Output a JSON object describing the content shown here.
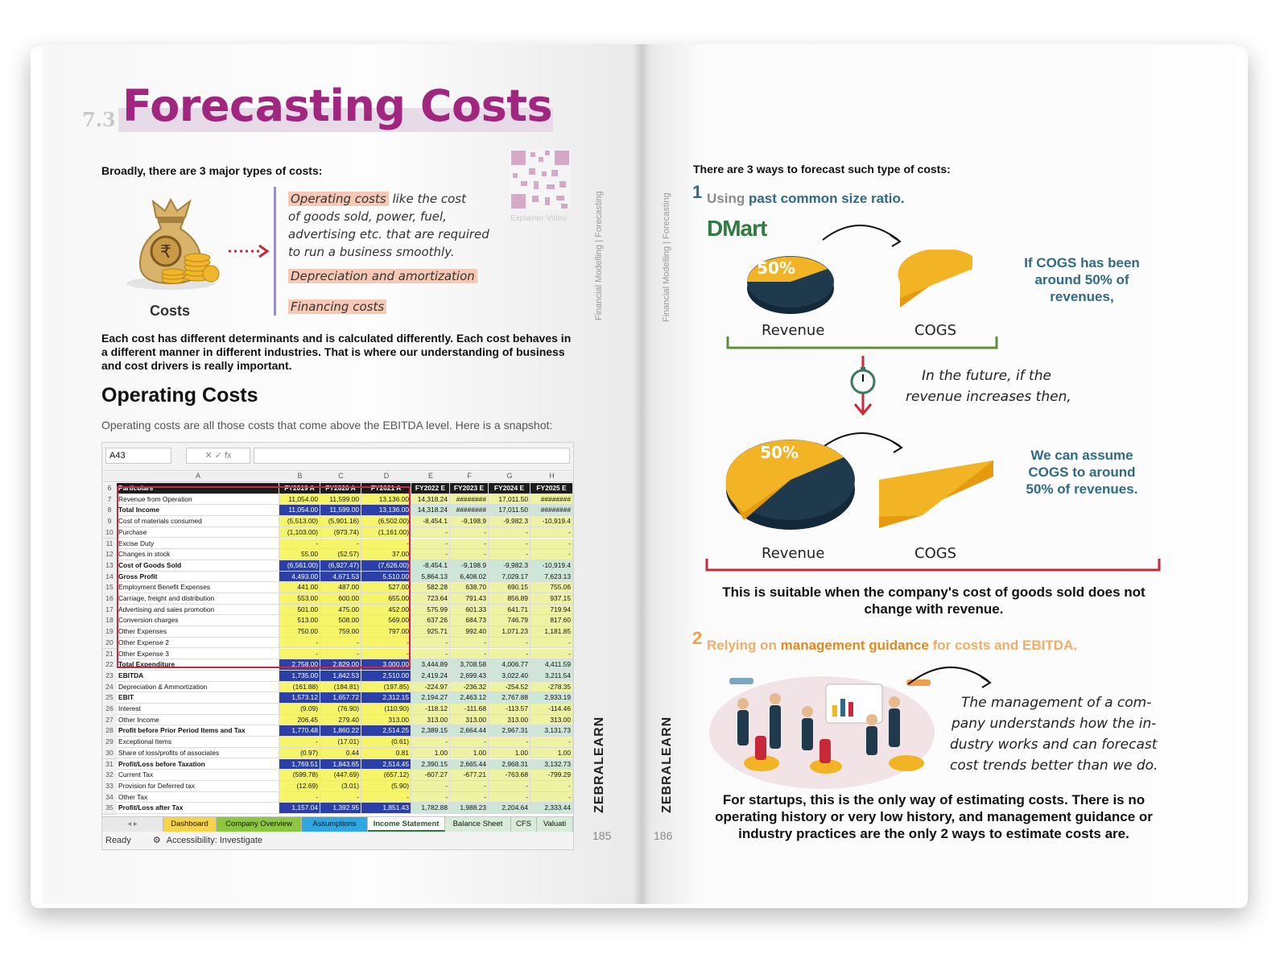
{
  "left_page": {
    "section_number": "7.3",
    "title": "Forecasting Costs",
    "intro": "Broadly, there are 3 major types of costs:",
    "costs_label": "Costs",
    "cost_types": [
      {
        "highlight": "Operating costs",
        "text": " like the cost"
      },
      {
        "highlight": "",
        "text": "of goods sold, power, fuel,"
      },
      {
        "highlight": "",
        "text": "advertising etc. that are required"
      },
      {
        "highlight": "",
        "text": "to run a business smoothly."
      },
      {
        "highlight": "Depreciation and amortization",
        "text": ""
      },
      {
        "highlight": "Financing costs",
        "text": ""
      }
    ],
    "qr_caption": "Explainer Video",
    "vertical_label": "Financial Modelling  |  Forecasting",
    "paragraph": "Each cost has different determinants and is calculated differently. Each cost behaves in a different manner in different industries. That is where our understanding of business and cost drivers is really important.",
    "operating_heading": "Operating Costs",
    "operating_text": "Operating costs are all those costs that come above the EBITDA level. Here is a snapshot:",
    "brand": "ZEBRALEARN",
    "page_number": "185"
  },
  "spreadsheet": {
    "name_box": "A43",
    "formula_buttons": "✕  ✓  fx",
    "col_letters": [
      "A",
      "B",
      "C",
      "D",
      "E",
      "F",
      "G",
      "H"
    ],
    "header": [
      "Particulars",
      "FY2019 A",
      "FY2020 A",
      "FY2021 A",
      "FY2022 E",
      "FY2023 E",
      "FY2024 E",
      "FY2025 E"
    ],
    "rows": [
      {
        "n": "7",
        "label": "Revenue from Operation",
        "v": [
          "11,054.00",
          "11,599.00",
          "13,136.00",
          "14,318.24",
          "########",
          "17,011.50",
          "########"
        ],
        "t": "y"
      },
      {
        "n": "8",
        "label": "Total Income",
        "v": [
          "11,054.00",
          "11,599.00",
          "13,136.00",
          "14,318.24",
          "########",
          "17,011.50",
          "########"
        ],
        "t": "b"
      },
      {
        "n": "9",
        "label": "Cost of materials consumed",
        "v": [
          "(5,513.00)",
          "(5,901.16)",
          "(6,502.00)",
          "-8,454.1",
          "-9,198.9",
          "-9,982.3",
          "-10,919.4"
        ],
        "t": "y"
      },
      {
        "n": "10",
        "label": "Purchase",
        "v": [
          "(1,103.00)",
          "(973.74)",
          "(1,161.00)",
          "-",
          "-",
          "-",
          "-"
        ],
        "t": "y"
      },
      {
        "n": "11",
        "label": "Excise Duty",
        "v": [
          "-",
          "-",
          "-",
          "-",
          "-",
          "-",
          "-"
        ],
        "t": "y"
      },
      {
        "n": "12",
        "label": "Changes in stock",
        "v": [
          "55.00",
          "(52.57)",
          "37.00",
          "-",
          "-",
          "-",
          "-"
        ],
        "t": "y"
      },
      {
        "n": "13",
        "label": "Cost of Goods Sold",
        "v": [
          "(6,561.00)",
          "(6,927.47)",
          "(7,626.00)",
          "-8,454.1",
          "-9,198.9",
          "-9,982.3",
          "-10,919.4"
        ],
        "t": "b"
      },
      {
        "n": "14",
        "label": "Gross Profit",
        "v": [
          "4,493.00",
          "4,671.53",
          "5,510.00",
          "5,864.13",
          "6,408.02",
          "7,029.17",
          "7,623.13"
        ],
        "t": "b"
      },
      {
        "n": "15",
        "label": "Employment Benefit Expenses",
        "v": [
          "441.00",
          "487.00",
          "527.00",
          "582.28",
          "638.70",
          "690.15",
          "755.06"
        ],
        "t": "y"
      },
      {
        "n": "16",
        "label": "Carriage, freight and distribution",
        "v": [
          "553.00",
          "600.00",
          "655.00",
          "723.64",
          "791.43",
          "856.89",
          "937.15"
        ],
        "t": "y"
      },
      {
        "n": "17",
        "label": "Advertising and sales promotion",
        "v": [
          "501.00",
          "475.00",
          "452.00",
          "575.99",
          "601.33",
          "641.71",
          "719.94"
        ],
        "t": "y"
      },
      {
        "n": "18",
        "label": "Conversion charges",
        "v": [
          "513.00",
          "508.00",
          "569.00",
          "637.26",
          "684.73",
          "746.79",
          "817.60"
        ],
        "t": "y"
      },
      {
        "n": "19",
        "label": "Other Expenses",
        "v": [
          "750.00",
          "759.00",
          "797.00",
          "925.71",
          "992.40",
          "1,071.23",
          "1,181.85"
        ],
        "t": "y"
      },
      {
        "n": "20",
        "label": "Other Expense 2",
        "v": [
          "-",
          "-",
          "-",
          "-",
          "-",
          "-",
          "-"
        ],
        "t": "y"
      },
      {
        "n": "21",
        "label": "Other Expense 3",
        "v": [
          "-",
          "-",
          "-",
          "-",
          "-",
          "-",
          "-"
        ],
        "t": "y"
      },
      {
        "n": "22",
        "label": "Total Expenditure",
        "v": [
          "2,758.00",
          "2,829.00",
          "3,000.00",
          "3,444.89",
          "3,708.58",
          "4,006.77",
          "4,411.59"
        ],
        "t": "b"
      },
      {
        "n": "23",
        "label": "EBITDA",
        "v": [
          "1,735.00",
          "1,842.53",
          "2,510.00",
          "2,419.24",
          "2,699.43",
          "3,022.40",
          "3,211.54"
        ],
        "t": "b"
      },
      {
        "n": "24",
        "label": "Depreciation & Ammortization",
        "v": [
          "(161.88)",
          "(184.81)",
          "(197.85)",
          "-224.97",
          "-236.32",
          "-254.52",
          "-278.35"
        ],
        "t": "y"
      },
      {
        "n": "25",
        "label": "EBIT",
        "v": [
          "1,573.12",
          "1,657.72",
          "2,312.15",
          "2,194.27",
          "2,463.12",
          "2,767.88",
          "2,933.19"
        ],
        "t": "b"
      },
      {
        "n": "26",
        "label": "Interest",
        "v": [
          "(9.09)",
          "(76.90)",
          "(110.90)",
          "-118.12",
          "-111.68",
          "-113.57",
          "-114.46"
        ],
        "t": "y"
      },
      {
        "n": "27",
        "label": "Other Income",
        "v": [
          "206.45",
          "279.40",
          "313.00",
          "313.00",
          "313.00",
          "313.00",
          "313.00"
        ],
        "t": "y"
      },
      {
        "n": "28",
        "label": "Profit before Prior Period Items and Tax",
        "v": [
          "1,770.48",
          "1,860.22",
          "2,514.25",
          "2,389.15",
          "2,664.44",
          "2,967.31",
          "3,131.73"
        ],
        "t": "b"
      },
      {
        "n": "29",
        "label": "Exceptional Items",
        "v": [
          "-",
          "(17.01)",
          "(0.61)",
          "-",
          "-",
          "-",
          "-"
        ],
        "t": "y"
      },
      {
        "n": "30",
        "label": "Share of loss/profits of associates",
        "v": [
          "(0.97)",
          "0.44",
          "0.81",
          "1.00",
          "1.00",
          "1.00",
          "1.00"
        ],
        "t": "y"
      },
      {
        "n": "31",
        "label": "Profit/Loss before Taxation",
        "v": [
          "1,769.51",
          "1,843.65",
          "2,514.45",
          "2,390.15",
          "2,665.44",
          "2,968.31",
          "3,132.73"
        ],
        "t": "b"
      },
      {
        "n": "32",
        "label": "Current Tax",
        "v": [
          "(599.78)",
          "(447.69)",
          "(657.12)",
          "-607.27",
          "-677.21",
          "-763.68",
          "-799.29"
        ],
        "t": "y"
      },
      {
        "n": "33",
        "label": "Provision for Deferred tax",
        "v": [
          "(12.69)",
          "(3.01)",
          "(5.90)",
          "-",
          "-",
          "-",
          "-"
        ],
        "t": "y"
      },
      {
        "n": "34",
        "label": "Other Tax",
        "v": [
          "-",
          "-",
          "-",
          "-",
          "-",
          "-",
          "-"
        ],
        "t": "y"
      },
      {
        "n": "35",
        "label": "Profit/Loss after Tax",
        "v": [
          "1,157.04",
          "1,392.95",
          "1,851.43",
          "1,782.88",
          "1,988.23",
          "2,204.64",
          "2,333.44"
        ],
        "t": "b"
      }
    ],
    "tabs": [
      "Dashboard",
      "Company Overview",
      "Assumptions",
      "Income Statement",
      "Balance Sheet",
      "CFS",
      "Valuati"
    ],
    "status_ready": "Ready",
    "status_access": "Accessibility: Investigate"
  },
  "right_page": {
    "intro": "There are 3 ways to forecast such type of costs:",
    "way1_number": "1",
    "way1_pre": "Using ",
    "way1_emph": "past common size ratio.",
    "dmart": "DMart",
    "pct_top": "50%",
    "revenue_label": "Revenue",
    "cogs_label": "COGS",
    "callout1": "If COGS has been around 50% of revenues,",
    "future_line1": "In the future, if the",
    "future_line2": "revenue increases then,",
    "pct_bottom": "50%",
    "revenue_label2": "Revenue",
    "cogs_label2": "COGS",
    "callout2": "We can assume COGS to around 50% of revenues.",
    "suitable": "This is suitable when the company's cost of goods sold does not change with revenue.",
    "way2_number": "2",
    "way2_pre": "Relying on ",
    "way2_emph": "management guidance",
    "way2_post": " for costs and EBITDA.",
    "mgmt_lines": [
      "The management of a com-",
      "pany understands how the in-",
      "dustry works and can forecast",
      "cost trends better than we do."
    ],
    "startup_text": "For startups, this is the only way of estimating costs. There is no operating history or very low history, and management guidance or industry practices are the only 2 ways to estimate costs are.",
    "vertical_label": "Financial Modelling  |  Forecasting",
    "brand": "ZEBRALEARN",
    "page_number": "186"
  },
  "colors": {
    "title_purple": "#a0267f",
    "teal": "#2e6a85",
    "orange": "#f0a04b",
    "pie_yellow": "#f2b425",
    "pie_navy": "#1f3a4d",
    "red": "#c7283a",
    "green": "#5f8f3e"
  }
}
